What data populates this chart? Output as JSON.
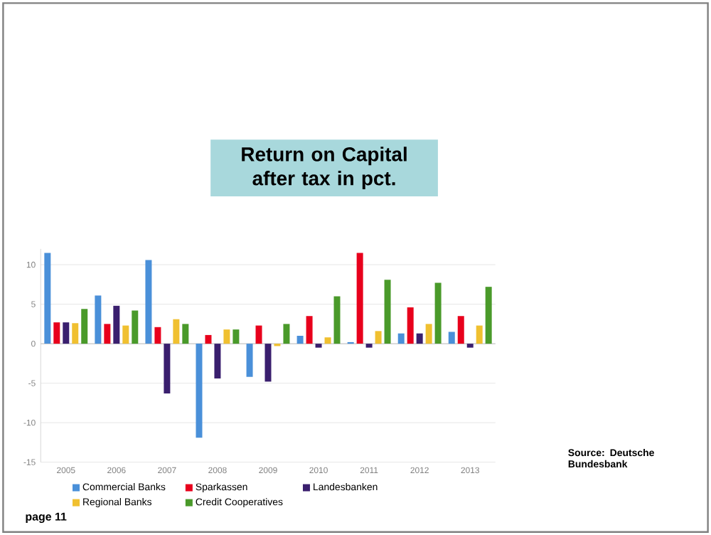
{
  "chart_data": {
    "type": "bar",
    "title": "Return on Capital after tax in pct.",
    "categories": [
      "2005",
      "2006",
      "2007",
      "2008",
      "2009",
      "2010",
      "2011",
      "2012",
      "2013"
    ],
    "series": [
      {
        "name": "Commercial Banks",
        "color": "#4a90d9",
        "values": [
          11.5,
          6.1,
          10.6,
          -11.9,
          -4.2,
          1.0,
          0.2,
          1.3,
          1.5
        ]
      },
      {
        "name": "Sparkassen",
        "color": "#e8001c",
        "values": [
          2.7,
          2.5,
          2.1,
          1.1,
          2.3,
          3.5,
          11.5,
          4.6,
          3.5
        ]
      },
      {
        "name": "Landesbanken",
        "color": "#3a1f6e",
        "values": [
          2.7,
          4.8,
          -6.3,
          -4.4,
          -4.8,
          -0.5,
          -0.5,
          1.3,
          -0.5
        ]
      },
      {
        "name": "Regional Banks",
        "color": "#f0c030",
        "values": [
          2.6,
          2.3,
          3.1,
          1.8,
          -0.3,
          0.8,
          1.6,
          2.5,
          2.3
        ]
      },
      {
        "name": "Credit Cooperatives",
        "color": "#4a9a2a",
        "values": [
          4.4,
          4.2,
          2.5,
          1.8,
          2.5,
          6.0,
          8.1,
          7.7,
          7.2
        ]
      }
    ],
    "ylim": [
      -15,
      12
    ],
    "yticks": [
      -15,
      -10,
      -5,
      0,
      5,
      10
    ],
    "grid": "y",
    "legend": "bottom",
    "annotations": [
      "Source:  Deutsche Bundesbank",
      "page 11"
    ]
  }
}
